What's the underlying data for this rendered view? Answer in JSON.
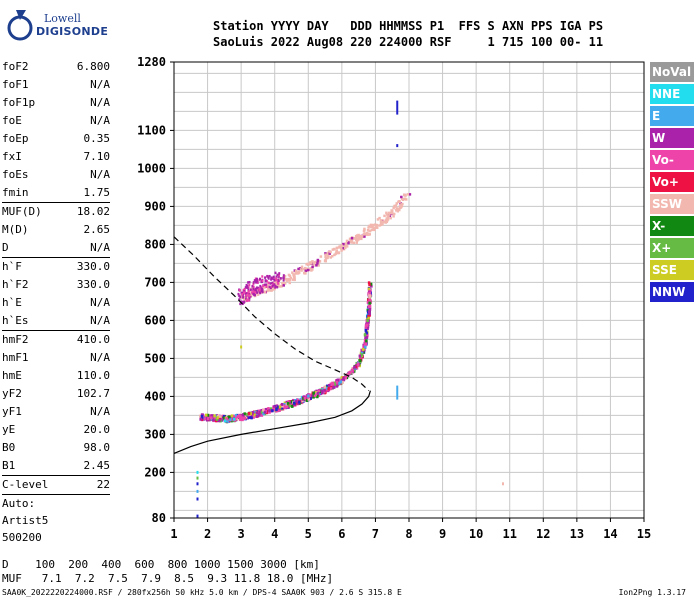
{
  "logo": {
    "line1": "Lowell",
    "line2": "DIGISONDE"
  },
  "header": {
    "line1": "Station YYYY DAY   DDD HHMMSS P1  FFS S AXN PPS IGA PS",
    "line2": "SaoLuis 2022 Aug08 220 224000 RSF     1 715 100 00- 11"
  },
  "params": [
    {
      "type": "row",
      "name": "foF2",
      "value": "6.800"
    },
    {
      "type": "row",
      "name": "foF1",
      "value": "N/A"
    },
    {
      "type": "row",
      "name": "foF1p",
      "value": "N/A"
    },
    {
      "type": "row",
      "name": "foE",
      "value": "N/A"
    },
    {
      "type": "row",
      "name": "foEp",
      "value": "0.35"
    },
    {
      "type": "row",
      "name": "fxI",
      "value": "7.10"
    },
    {
      "type": "row",
      "name": "foEs",
      "value": "N/A"
    },
    {
      "type": "row",
      "name": "fmin",
      "value": "1.75"
    },
    {
      "type": "sep"
    },
    {
      "type": "row",
      "name": "MUF(D)",
      "value": "18.02"
    },
    {
      "type": "row",
      "name": "M(D)",
      "value": "2.65"
    },
    {
      "type": "row",
      "name": "D",
      "value": "N/A"
    },
    {
      "type": "sep"
    },
    {
      "type": "row",
      "name": "h`F",
      "value": "330.0"
    },
    {
      "type": "row",
      "name": "h`F2",
      "value": "330.0"
    },
    {
      "type": "row",
      "name": "h`E",
      "value": "N/A"
    },
    {
      "type": "row",
      "name": "h`Es",
      "value": "N/A"
    },
    {
      "type": "sep"
    },
    {
      "type": "row",
      "name": "hmF2",
      "value": "410.0"
    },
    {
      "type": "row",
      "name": "hmF1",
      "value": "N/A"
    },
    {
      "type": "row",
      "name": "hmE",
      "value": "110.0"
    },
    {
      "type": "row",
      "name": "yF2",
      "value": "102.7"
    },
    {
      "type": "row",
      "name": "yF1",
      "value": "N/A"
    },
    {
      "type": "row",
      "name": "yE",
      "value": "20.0"
    },
    {
      "type": "row",
      "name": "B0",
      "value": "98.0"
    },
    {
      "type": "row",
      "name": "B1",
      "value": "2.45"
    },
    {
      "type": "sep"
    },
    {
      "type": "row",
      "name": "C-level",
      "value": "22"
    },
    {
      "type": "sep"
    },
    {
      "type": "text",
      "text": "Auto:"
    },
    {
      "type": "text",
      "text": "Artist5"
    },
    {
      "type": "text",
      "text": "500200"
    }
  ],
  "legend": [
    {
      "label": "NoVal",
      "color": "#9a9a9a"
    },
    {
      "label": "NNE",
      "color": "#22ddee"
    },
    {
      "label": "E",
      "color": "#44aaee"
    },
    {
      "label": "W",
      "color": "#aa22aa"
    },
    {
      "label": "Vo-",
      "color": "#ee44aa"
    },
    {
      "label": "Vo+",
      "color": "#ee1144"
    },
    {
      "label": "SSW",
      "color": "#f2b8b0"
    },
    {
      "label": "X-",
      "color": "#118811"
    },
    {
      "label": "X+",
      "color": "#66bb44"
    },
    {
      "label": "SSE",
      "color": "#cccc22"
    },
    {
      "label": "NNW",
      "color": "#2222cc"
    }
  ],
  "chart_data": {
    "type": "scatter",
    "xlim": [
      1,
      15
    ],
    "ylim": [
      80,
      1280
    ],
    "xticks": [
      "1",
      "2",
      "3",
      "4",
      "5",
      "6",
      "7",
      "8",
      "9",
      "10",
      "11",
      "12",
      "13",
      "14",
      "15"
    ],
    "yticks": [
      "80",
      "200",
      "300",
      "400",
      "500",
      "600",
      "700",
      "800",
      "900",
      "1000",
      "1100",
      "1280"
    ],
    "grid": true,
    "f_trace_O": [
      [
        1.8,
        345
      ],
      [
        2.2,
        343
      ],
      [
        2.6,
        340
      ],
      [
        3.0,
        345
      ],
      [
        3.4,
        352
      ],
      [
        3.8,
        362
      ],
      [
        4.2,
        372
      ],
      [
        4.6,
        384
      ],
      [
        5.0,
        397
      ],
      [
        5.4,
        412
      ],
      [
        5.8,
        432
      ],
      [
        6.2,
        455
      ],
      [
        6.5,
        485
      ],
      [
        6.7,
        540
      ],
      [
        6.8,
        620
      ],
      [
        6.85,
        700
      ]
    ],
    "f_trace_X_oblique": [
      [
        3.0,
        655
      ],
      [
        3.4,
        675
      ],
      [
        4.0,
        692
      ],
      [
        4.5,
        712
      ],
      [
        5.0,
        740
      ],
      [
        5.5,
        765
      ],
      [
        6.0,
        790
      ],
      [
        6.5,
        818
      ],
      [
        7.0,
        850
      ],
      [
        7.5,
        880
      ],
      [
        8.0,
        940
      ]
    ],
    "diffuse_upper": [
      [
        3.0,
        660
      ],
      [
        3.3,
        680
      ],
      [
        3.7,
        700
      ],
      [
        4.2,
        710
      ]
    ],
    "noise_points": [
      [
        7.65,
        1160
      ],
      [
        7.65,
        1060
      ],
      [
        7.65,
        410
      ],
      [
        1.7,
        200
      ],
      [
        1.7,
        185
      ],
      [
        1.7,
        170
      ],
      [
        1.7,
        150
      ],
      [
        1.7,
        130
      ],
      [
        1.7,
        85
      ],
      [
        10.8,
        170
      ],
      [
        3.0,
        530
      ]
    ],
    "profile_solid": [
      [
        1,
        250
      ],
      [
        1.5,
        268
      ],
      [
        2,
        282
      ],
      [
        3,
        300
      ],
      [
        4,
        315
      ],
      [
        5,
        330
      ],
      [
        5.8,
        345
      ],
      [
        6.3,
        362
      ],
      [
        6.6,
        380
      ],
      [
        6.8,
        400
      ],
      [
        6.85,
        415
      ]
    ],
    "profile_dashed": [
      [
        1,
        820
      ],
      [
        1.6,
        770
      ],
      [
        2.2,
        715
      ],
      [
        2.8,
        665
      ],
      [
        3.4,
        610
      ],
      [
        4.0,
        565
      ],
      [
        4.6,
        525
      ],
      [
        5.2,
        493
      ],
      [
        5.8,
        470
      ],
      [
        6.3,
        450
      ],
      [
        6.6,
        432
      ],
      [
        6.8,
        415
      ]
    ]
  },
  "footer": {
    "row1": "D    100  200  400  600  800 1000 1500 3000 [km]",
    "row2": "MUF   7.1  7.2  7.5  7.9  8.5  9.3 11.8 18.0 [MHz]",
    "bottom": "SAA0K_2022220224000.RSF / 280fx256h 50 kHz 5.0 km / DPS-4 SAA0K 903 / 2.6 S 315.8 E",
    "version": "Ion2Png 1.3.17"
  }
}
